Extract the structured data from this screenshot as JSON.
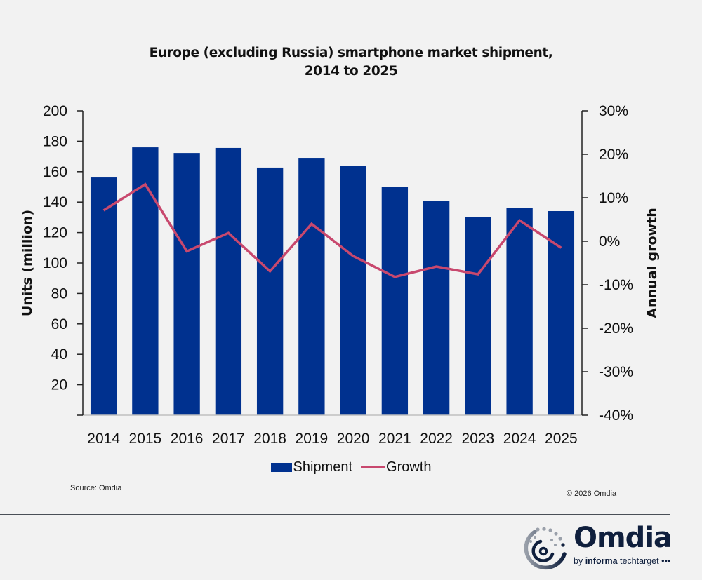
{
  "chart_data": {
    "type": "bar+line",
    "title": [
      "Europe (excluding Russia) smartphone market shipment,",
      "2014 to 2025"
    ],
    "categories": [
      "2014",
      "2015",
      "2016",
      "2017",
      "2018",
      "2019",
      "2020",
      "2021",
      "2022",
      "2023",
      "2024",
      "2025"
    ],
    "series": [
      {
        "name": "Shipment",
        "type": "bar",
        "axis": "left",
        "color": "#00318f",
        "values": [
          156.2,
          176.0,
          172.3,
          175.6,
          162.7,
          169.1,
          163.6,
          149.8,
          141.0,
          130.0,
          136.4,
          134.1
        ]
      },
      {
        "name": "Growth",
        "type": "line",
        "axis": "right",
        "color": "#c8486e",
        "values": [
          7.1,
          13.1,
          -2.3,
          1.9,
          -6.9,
          4.0,
          -3.4,
          -8.2,
          -5.8,
          -7.6,
          4.8,
          -1.5
        ]
      }
    ],
    "ylabel": "Units (million)",
    "ylabel_right": "Annual growth",
    "ylim": [
      0,
      200
    ],
    "ylim_right": [
      -40,
      30
    ],
    "yticks": [
      "20",
      "40",
      "60",
      "80",
      "100",
      "120",
      "140",
      "160",
      "180",
      "200"
    ],
    "ytick_values": [
      20,
      40,
      60,
      80,
      100,
      120,
      140,
      160,
      180,
      200
    ],
    "yticks_right": [
      "-40%",
      "-30%",
      "-20%",
      "-10%",
      "0%",
      "10%",
      "20%",
      "30%"
    ],
    "ytick_right_values": [
      -40,
      -30,
      -20,
      -10,
      0,
      10,
      20,
      30
    ],
    "grid": false,
    "legend_position": "bottom"
  },
  "legend": {
    "shipment": "Shipment",
    "growth": "Growth"
  },
  "footer": {
    "source": "Source: Omdia",
    "copyright": "© 2026 Omdia"
  },
  "logo": {
    "name": "Omdia",
    "tagline_prefix": "by ",
    "tagline_brand": "informa",
    "tagline_suffix": " techtarget •••"
  },
  "colors": {
    "background": "#f2f2f2",
    "bar": "#00318f",
    "line": "#c8486e"
  }
}
